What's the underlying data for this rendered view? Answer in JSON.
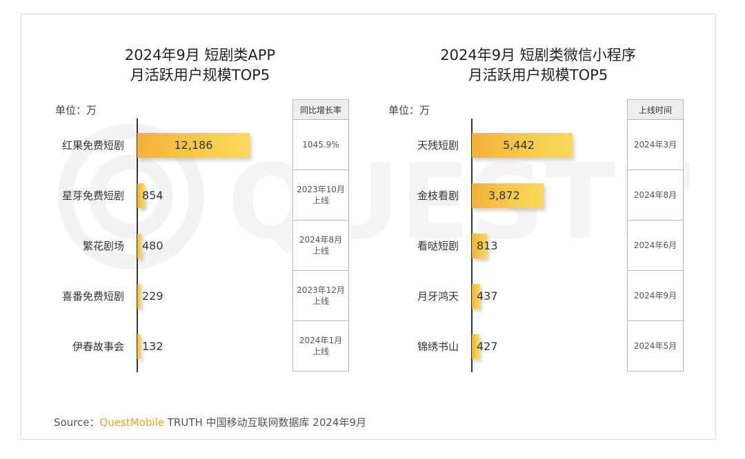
{
  "source": {
    "prefix": "Source：",
    "brand": "QuestMobile",
    "suffix": " TRUTH 中国移动互联网数据库 2024年9月"
  },
  "watermark_text": "QUESTMOBILE",
  "colors": {
    "bar": "#f8c544",
    "brand": "#f0a020",
    "watermark": "#f2f2f2"
  },
  "chart_data": [
    {
      "type": "bar",
      "orientation": "horizontal",
      "title_line1": "2024年9月 短剧类APP",
      "title_line2": "月活跃用户规模TOP5",
      "unit_label": "单位：万",
      "categories": [
        "红果免费短剧",
        "星芽免费短剧",
        "繁花剧场",
        "喜番免费短剧",
        "伊春故事会"
      ],
      "values": [
        12186,
        854,
        480,
        229,
        132
      ],
      "value_labels": [
        "12,186",
        "854",
        "480",
        "229",
        "132"
      ],
      "side_header": "同比增长率",
      "side_values": [
        "1045.9%",
        "2023年10月\n上线",
        "2024年8月\n上线",
        "2023年12月\n上线",
        "2024年1月\n上线"
      ]
    },
    {
      "type": "bar",
      "orientation": "horizontal",
      "title_line1": "2024年9月 短剧类微信小程序",
      "title_line2": "月活跃用户规模TOP5",
      "unit_label": "单位：万",
      "categories": [
        "天残短剧",
        "金枝看剧",
        "看哒短剧",
        "月牙鸿天",
        "锦绣书山"
      ],
      "values": [
        5442,
        3872,
        813,
        437,
        427
      ],
      "value_labels": [
        "5,442",
        "3,872",
        "813",
        "437",
        "427"
      ],
      "side_header": "上线时间",
      "side_values": [
        "2024年3月",
        "2024年8月",
        "2024年6月",
        "2024年9月",
        "2024年5月"
      ]
    }
  ]
}
